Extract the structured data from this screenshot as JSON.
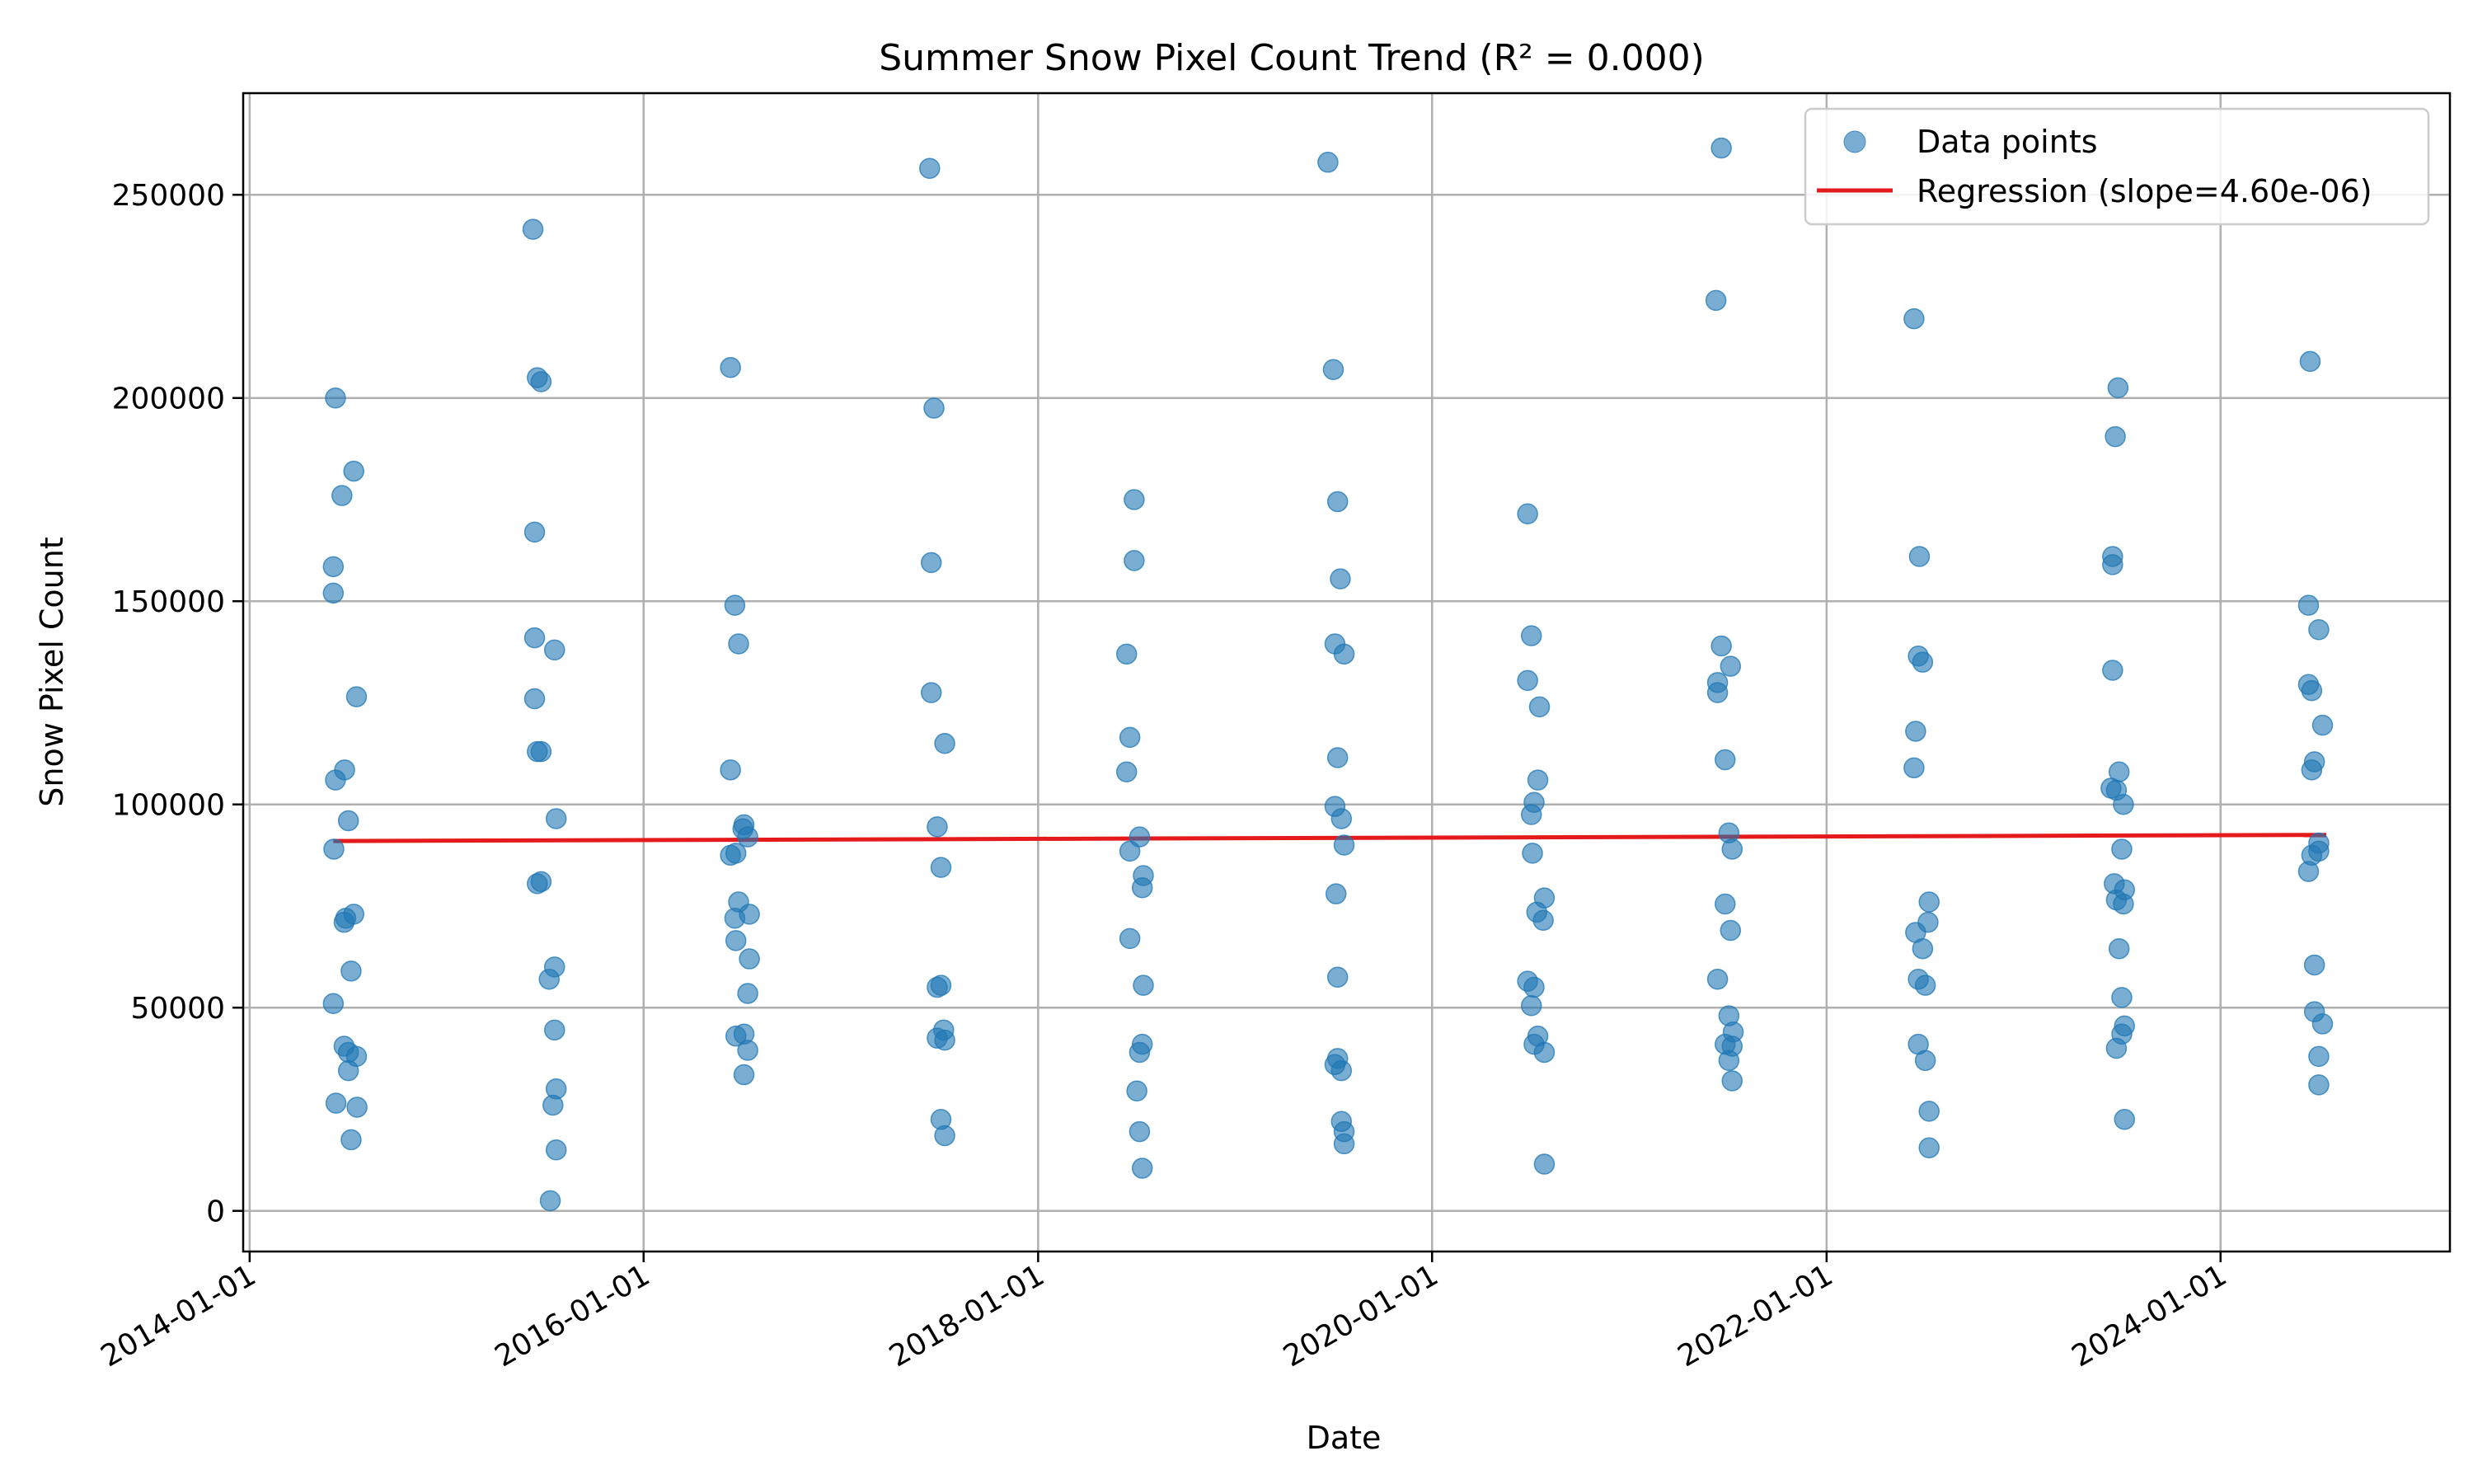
{
  "chart_data": {
    "type": "scatter",
    "title": "Summer Snow Pixel Count Trend (R² = 0.000)",
    "xlabel": "Date",
    "ylabel": "Snow Pixel Count",
    "x_axis_type": "date",
    "xlim": [
      "2013-12-20",
      "2025-03-01"
    ],
    "ylim": [
      -10000,
      275000
    ],
    "xticks": [
      "2014-01-01",
      "2016-01-01",
      "2018-01-01",
      "2020-01-01",
      "2022-01-01",
      "2024-01-01"
    ],
    "yticks": [
      0,
      50000,
      100000,
      150000,
      200000,
      250000
    ],
    "grid": true,
    "legend_position": "top-right",
    "colors": {
      "points": "#1f77b4",
      "regression": "#e41a1c"
    },
    "series": [
      {
        "name": "Data points",
        "kind": "scatter",
        "points": [
          [
            "2014-06-05",
            158500
          ],
          [
            "2014-06-05",
            152000
          ],
          [
            "2014-06-05",
            51000
          ],
          [
            "2014-06-06",
            89000
          ],
          [
            "2014-06-09",
            200000
          ],
          [
            "2014-06-09",
            106000
          ],
          [
            "2014-06-10",
            26500
          ],
          [
            "2014-06-21",
            176000
          ],
          [
            "2014-06-25",
            40500
          ],
          [
            "2014-06-25",
            71000
          ],
          [
            "2014-06-26",
            108500
          ],
          [
            "2014-06-28",
            72000
          ],
          [
            "2014-07-03",
            96000
          ],
          [
            "2014-07-03",
            39000
          ],
          [
            "2014-07-03",
            34500
          ],
          [
            "2014-07-08",
            59000
          ],
          [
            "2014-07-08",
            17500
          ],
          [
            "2014-07-13",
            182000
          ],
          [
            "2014-07-13",
            73000
          ],
          [
            "2014-07-18",
            126500
          ],
          [
            "2014-07-18",
            38000
          ],
          [
            "2014-07-19",
            25500
          ],
          [
            "2015-06-10",
            241500
          ],
          [
            "2015-06-13",
            167000
          ],
          [
            "2015-06-13",
            141000
          ],
          [
            "2015-06-13",
            126000
          ],
          [
            "2015-06-18",
            205000
          ],
          [
            "2015-06-18",
            113000
          ],
          [
            "2015-06-18",
            80500
          ],
          [
            "2015-06-25",
            204000
          ],
          [
            "2015-06-25",
            113000
          ],
          [
            "2015-06-25",
            81000
          ],
          [
            "2015-07-10",
            57000
          ],
          [
            "2015-07-12",
            2500
          ],
          [
            "2015-07-17",
            26000
          ],
          [
            "2015-07-20",
            138000
          ],
          [
            "2015-07-20",
            60000
          ],
          [
            "2015-07-20",
            44500
          ],
          [
            "2015-07-23",
            96500
          ],
          [
            "2015-07-23",
            30000
          ],
          [
            "2015-07-23",
            15000
          ],
          [
            "2016-06-10",
            207500
          ],
          [
            "2016-06-10",
            108500
          ],
          [
            "2016-06-10",
            87500
          ],
          [
            "2016-06-18",
            72000
          ],
          [
            "2016-06-18",
            149000
          ],
          [
            "2016-06-20",
            88000
          ],
          [
            "2016-06-20",
            66500
          ],
          [
            "2016-06-20",
            43000
          ],
          [
            "2016-06-25",
            139500
          ],
          [
            "2016-06-25",
            76000
          ],
          [
            "2016-07-03",
            94000
          ],
          [
            "2016-07-05",
            95000
          ],
          [
            "2016-07-05",
            43500
          ],
          [
            "2016-07-05",
            33500
          ],
          [
            "2016-07-12",
            92000
          ],
          [
            "2016-07-12",
            39500
          ],
          [
            "2016-07-12",
            53500
          ],
          [
            "2016-07-15",
            73000
          ],
          [
            "2016-07-15",
            62000
          ],
          [
            "2017-06-14",
            256500
          ],
          [
            "2017-06-17",
            159500
          ],
          [
            "2017-06-17",
            127500
          ],
          [
            "2017-06-22",
            197500
          ],
          [
            "2017-06-28",
            94500
          ],
          [
            "2017-06-28",
            55000
          ],
          [
            "2017-06-28",
            42500
          ],
          [
            "2017-07-05",
            84500
          ],
          [
            "2017-07-05",
            55500
          ],
          [
            "2017-07-05",
            22500
          ],
          [
            "2017-07-10",
            44500
          ],
          [
            "2017-07-12",
            115000
          ],
          [
            "2017-07-12",
            42000
          ],
          [
            "2017-07-12",
            18500
          ],
          [
            "2018-06-14",
            137000
          ],
          [
            "2018-06-14",
            108000
          ],
          [
            "2018-06-20",
            116500
          ],
          [
            "2018-06-20",
            88500
          ],
          [
            "2018-06-20",
            67000
          ],
          [
            "2018-06-28",
            175000
          ],
          [
            "2018-06-28",
            160000
          ],
          [
            "2018-07-03",
            29500
          ],
          [
            "2018-07-08",
            92000
          ],
          [
            "2018-07-08",
            39000
          ],
          [
            "2018-07-08",
            19500
          ],
          [
            "2018-07-13",
            79500
          ],
          [
            "2018-07-13",
            41000
          ],
          [
            "2018-07-13",
            10500
          ],
          [
            "2018-07-15",
            82500
          ],
          [
            "2018-07-15",
            55500
          ],
          [
            "2019-06-22",
            258000
          ],
          [
            "2019-07-02",
            207000
          ],
          [
            "2019-07-05",
            139500
          ],
          [
            "2019-07-05",
            99500
          ],
          [
            "2019-07-05",
            36000
          ],
          [
            "2019-07-07",
            78000
          ],
          [
            "2019-07-10",
            174500
          ],
          [
            "2019-07-10",
            111500
          ],
          [
            "2019-07-10",
            57500
          ],
          [
            "2019-07-10",
            37500
          ],
          [
            "2019-07-15",
            155500
          ],
          [
            "2019-07-17",
            96500
          ],
          [
            "2019-07-17",
            34500
          ],
          [
            "2019-07-17",
            22000
          ],
          [
            "2019-07-22",
            137000
          ],
          [
            "2019-07-22",
            90000
          ],
          [
            "2019-07-22",
            19500
          ],
          [
            "2019-07-22",
            16500
          ],
          [
            "2020-06-26",
            171500
          ],
          [
            "2020-06-26",
            130500
          ],
          [
            "2020-06-26",
            56500
          ],
          [
            "2020-07-03",
            141500
          ],
          [
            "2020-07-03",
            97500
          ],
          [
            "2020-07-03",
            50500
          ],
          [
            "2020-07-05",
            88000
          ],
          [
            "2020-07-08",
            100500
          ],
          [
            "2020-07-08",
            55000
          ],
          [
            "2020-07-08",
            41000
          ],
          [
            "2020-07-13",
            73500
          ],
          [
            "2020-07-15",
            106000
          ],
          [
            "2020-07-15",
            43000
          ],
          [
            "2020-07-18",
            124000
          ],
          [
            "2020-07-25",
            71500
          ],
          [
            "2020-07-27",
            77000
          ],
          [
            "2020-07-27",
            39000
          ],
          [
            "2020-07-27",
            11500
          ],
          [
            "2021-06-10",
            224000
          ],
          [
            "2021-06-13",
            130000
          ],
          [
            "2021-06-13",
            127500
          ],
          [
            "2021-06-13",
            57000
          ],
          [
            "2021-06-20",
            261500
          ],
          [
            "2021-06-20",
            139000
          ],
          [
            "2021-06-27",
            111000
          ],
          [
            "2021-06-27",
            75500
          ],
          [
            "2021-06-27",
            41000
          ],
          [
            "2021-07-04",
            93000
          ],
          [
            "2021-07-04",
            48000
          ],
          [
            "2021-07-04",
            37000
          ],
          [
            "2021-07-07",
            134000
          ],
          [
            "2021-07-07",
            69000
          ],
          [
            "2021-07-10",
            89000
          ],
          [
            "2021-07-10",
            40500
          ],
          [
            "2021-07-10",
            32000
          ],
          [
            "2021-07-12",
            44000
          ],
          [
            "2022-06-12",
            219500
          ],
          [
            "2022-06-12",
            109000
          ],
          [
            "2022-06-15",
            118000
          ],
          [
            "2022-06-15",
            68500
          ],
          [
            "2022-06-20",
            136500
          ],
          [
            "2022-06-20",
            57000
          ],
          [
            "2022-06-20",
            41000
          ],
          [
            "2022-06-22",
            161000
          ],
          [
            "2022-06-28",
            135000
          ],
          [
            "2022-06-28",
            64500
          ],
          [
            "2022-07-03",
            55500
          ],
          [
            "2022-07-03",
            37000
          ],
          [
            "2022-07-08",
            71000
          ],
          [
            "2022-07-10",
            76000
          ],
          [
            "2022-07-10",
            24500
          ],
          [
            "2022-07-10",
            15500
          ],
          [
            "2023-06-12",
            104000
          ],
          [
            "2023-06-15",
            161000
          ],
          [
            "2023-06-15",
            159000
          ],
          [
            "2023-06-15",
            133000
          ],
          [
            "2023-06-18",
            80500
          ],
          [
            "2023-06-20",
            190500
          ],
          [
            "2023-06-22",
            103500
          ],
          [
            "2023-06-22",
            76500
          ],
          [
            "2023-06-22",
            40000
          ],
          [
            "2023-06-25",
            202500
          ],
          [
            "2023-06-27",
            108000
          ],
          [
            "2023-06-27",
            64500
          ],
          [
            "2023-07-02",
            89000
          ],
          [
            "2023-07-02",
            52500
          ],
          [
            "2023-07-02",
            43500
          ],
          [
            "2023-07-05",
            100000
          ],
          [
            "2023-07-05",
            75500
          ],
          [
            "2023-07-07",
            79000
          ],
          [
            "2023-07-07",
            45500
          ],
          [
            "2023-07-07",
            22500
          ],
          [
            "2024-06-12",
            149000
          ],
          [
            "2024-06-12",
            129500
          ],
          [
            "2024-06-12",
            83500
          ],
          [
            "2024-06-15",
            209000
          ],
          [
            "2024-06-18",
            128000
          ],
          [
            "2024-06-18",
            108500
          ],
          [
            "2024-06-18",
            87500
          ],
          [
            "2024-06-23",
            110500
          ],
          [
            "2024-06-23",
            60500
          ],
          [
            "2024-06-23",
            49000
          ],
          [
            "2024-07-01",
            143000
          ],
          [
            "2024-07-01",
            90500
          ],
          [
            "2024-07-01",
            88500
          ],
          [
            "2024-07-01",
            38000
          ],
          [
            "2024-07-01",
            31000
          ],
          [
            "2024-07-08",
            119500
          ],
          [
            "2024-07-08",
            46000
          ]
        ]
      },
      {
        "name": "Regression (slope=4.60e-06)",
        "kind": "line",
        "points": [
          [
            "2014-06-05",
            91000
          ],
          [
            "2024-07-15",
            92500
          ]
        ]
      }
    ]
  }
}
